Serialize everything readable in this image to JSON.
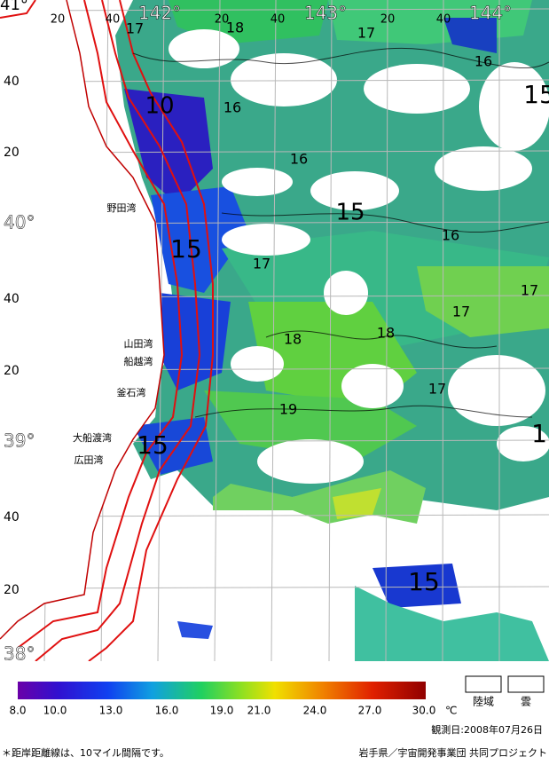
{
  "map": {
    "top_labels": [
      "20",
      "40",
      "142°",
      "20",
      "40",
      "143°",
      "20",
      "40",
      "144°"
    ],
    "corner_label": "41°",
    "left_labels": [
      "40",
      "20",
      "40°",
      "40",
      "20",
      "39°",
      "40",
      "20",
      "38°"
    ],
    "places": [
      "野田湾",
      "山田湾",
      "船越湾",
      "釜石湾",
      "大船渡湾",
      "広田湾"
    ],
    "contour_labels": [
      "17",
      "18",
      "17",
      "16",
      "15",
      "16",
      "10",
      "16",
      "15",
      "16",
      "15",
      "17",
      "17",
      "17",
      "18",
      "18",
      "17",
      "19",
      "15",
      "15",
      "1"
    ]
  },
  "colorbar": {
    "ticks": [
      "8.0",
      "10.0",
      "13.0",
      "16.0",
      "19.0",
      "21.0",
      "24.0",
      "27.0",
      "30.0"
    ],
    "unit": "℃"
  },
  "legend": [
    "陸域",
    "雲"
  ],
  "observation_date": "観測日:2008年07月26日",
  "footnote": "＊距岸距離線は、10マイル間隔です。",
  "credit": "岩手県／宇宙開発事業団  共同プロジェクト"
}
